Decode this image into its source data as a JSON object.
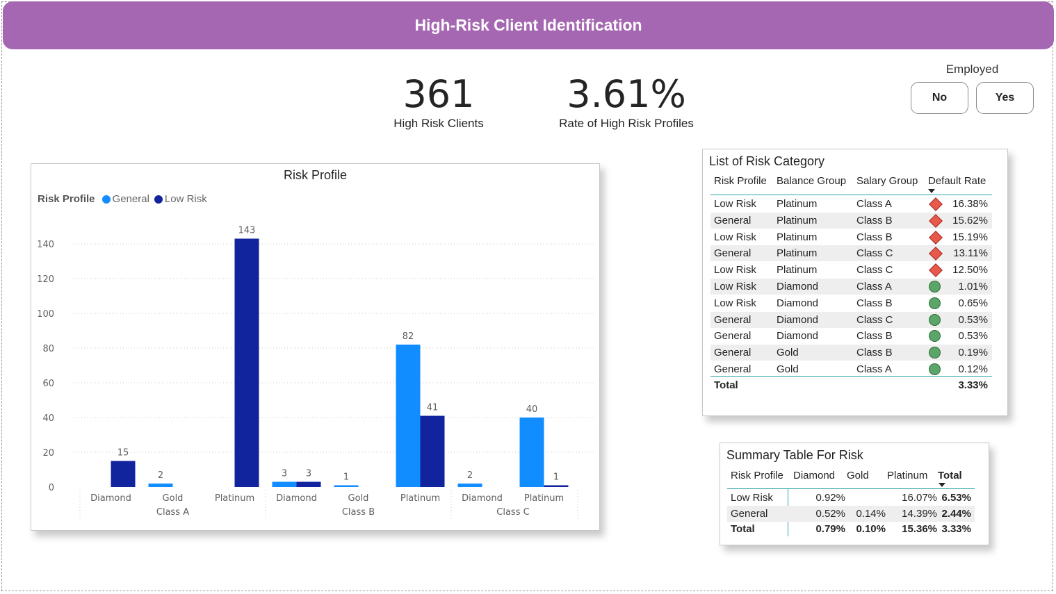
{
  "header": {
    "title": "High-Risk Client Identification"
  },
  "kpis": [
    {
      "value": "361",
      "label": "High Risk Clients"
    },
    {
      "value": "3.61%",
      "label": "Rate of High Risk Profiles"
    }
  ],
  "slicer": {
    "title": "Employed",
    "options": [
      "No",
      "Yes"
    ]
  },
  "chart_data": {
    "type": "bar",
    "title": "Risk Profile",
    "legend_title": "Risk Profile",
    "legend_position": "top-left",
    "grid": true,
    "ylim": [
      0,
      150
    ],
    "y_ticks": [
      0,
      20,
      40,
      60,
      80,
      100,
      120,
      140
    ],
    "groups": [
      {
        "name": "Class A",
        "categories": [
          "Diamond",
          "Gold",
          "Platinum"
        ]
      },
      {
        "name": "Class B",
        "categories": [
          "Diamond",
          "Gold",
          "Platinum"
        ]
      },
      {
        "name": "Class C",
        "categories": [
          "Diamond",
          "Platinum"
        ]
      }
    ],
    "series": [
      {
        "name": "General",
        "color": "#118dff",
        "values": [
          null,
          2,
          null,
          3,
          1,
          82,
          2,
          40
        ]
      },
      {
        "name": "Low Risk",
        "color": "#12239e",
        "values": [
          15,
          null,
          143,
          3,
          null,
          41,
          null,
          1
        ]
      }
    ]
  },
  "risk_list": {
    "title": "List of Risk Category",
    "columns": [
      "Risk Profile",
      "Balance Group",
      "Salary Group",
      "Default Rate"
    ],
    "rows": [
      {
        "profile": "Low Risk",
        "balance": "Platinum",
        "salary": "Class A",
        "rate": "16.38%",
        "icon": "red-diamond-icon"
      },
      {
        "profile": "General",
        "balance": "Platinum",
        "salary": "Class B",
        "rate": "15.62%",
        "icon": "red-diamond-icon"
      },
      {
        "profile": "Low Risk",
        "balance": "Platinum",
        "salary": "Class B",
        "rate": "15.19%",
        "icon": "red-diamond-icon"
      },
      {
        "profile": "General",
        "balance": "Platinum",
        "salary": "Class C",
        "rate": "13.11%",
        "icon": "red-diamond-icon"
      },
      {
        "profile": "Low Risk",
        "balance": "Platinum",
        "salary": "Class C",
        "rate": "12.50%",
        "icon": "red-diamond-icon"
      },
      {
        "profile": "Low Risk",
        "balance": "Diamond",
        "salary": "Class A",
        "rate": "1.01%",
        "icon": "green-circle-icon"
      },
      {
        "profile": "Low Risk",
        "balance": "Diamond",
        "salary": "Class B",
        "rate": "0.65%",
        "icon": "green-circle-icon"
      },
      {
        "profile": "General",
        "balance": "Diamond",
        "salary": "Class C",
        "rate": "0.53%",
        "icon": "green-circle-icon"
      },
      {
        "profile": "General",
        "balance": "Diamond",
        "salary": "Class B",
        "rate": "0.53%",
        "icon": "green-circle-icon"
      },
      {
        "profile": "General",
        "balance": "Gold",
        "salary": "Class B",
        "rate": "0.19%",
        "icon": "green-circle-icon"
      },
      {
        "profile": "General",
        "balance": "Gold",
        "salary": "Class A",
        "rate": "0.12%",
        "icon": "green-circle-icon"
      }
    ],
    "total": {
      "label": "Total",
      "rate": "3.33%"
    }
  },
  "summary": {
    "title": "Summary Table For Risk",
    "columns": [
      "Risk Profile",
      "Diamond",
      "Gold",
      "Platinum",
      "Total"
    ],
    "rows": [
      {
        "profile": "Low Risk",
        "diamond": "0.92%",
        "gold": "",
        "platinum": "16.07%",
        "total": "6.53%"
      },
      {
        "profile": "General",
        "diamond": "0.52%",
        "gold": "0.14%",
        "platinum": "14.39%",
        "total": "2.44%"
      }
    ],
    "total": {
      "profile": "Total",
      "diamond": "0.79%",
      "gold": "0.10%",
      "platinum": "15.36%",
      "total": "3.33%"
    }
  }
}
